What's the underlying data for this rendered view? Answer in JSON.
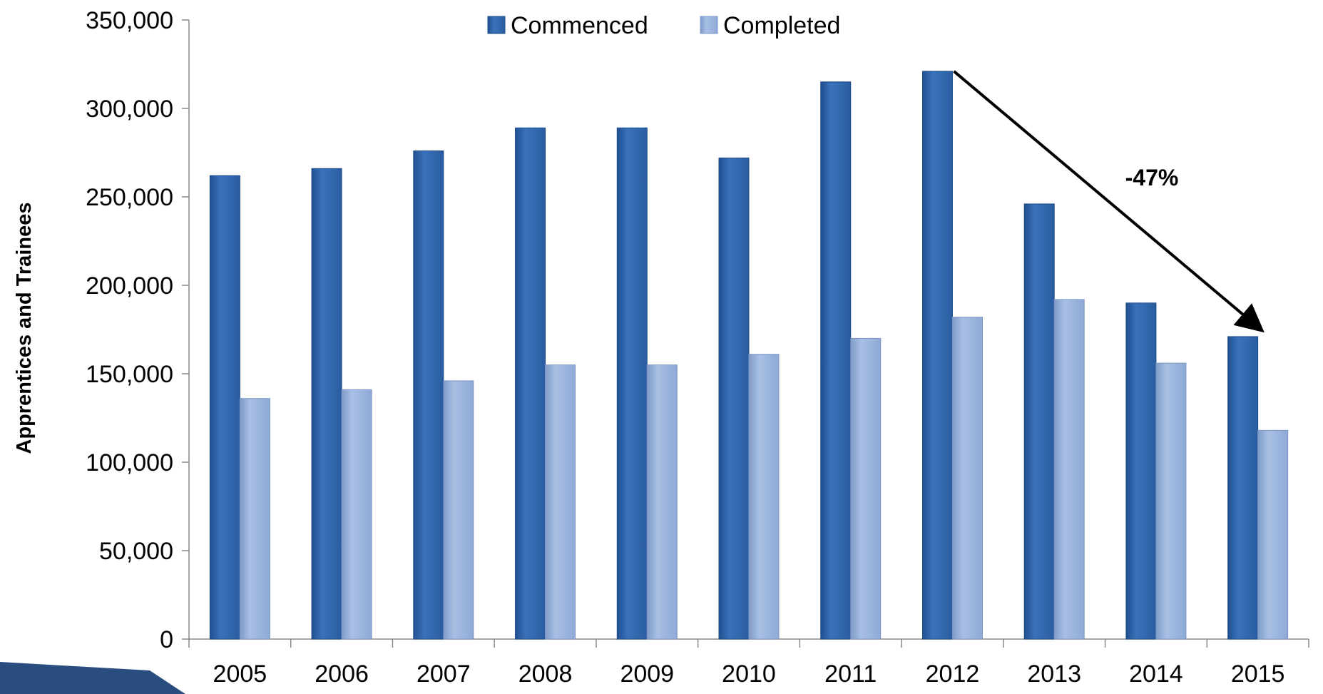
{
  "chart_data": {
    "type": "bar",
    "title": "",
    "xlabel": "",
    "ylabel": "Apprentices and Trainees",
    "ylim": [
      0,
      350000
    ],
    "yticks": [
      0,
      50000,
      100000,
      150000,
      200000,
      250000,
      300000,
      350000
    ],
    "ytick_labels": [
      "0",
      "50,000",
      "100,000",
      "150,000",
      "200,000",
      "250,000",
      "300,000",
      "350,000"
    ],
    "categories": [
      "2005",
      "2006",
      "2007",
      "2008",
      "2009",
      "2010",
      "2011",
      "2012",
      "2013",
      "2014",
      "2015"
    ],
    "series": [
      {
        "name": "Commenced",
        "color": "#2f66ad",
        "values": [
          262000,
          266000,
          276000,
          289000,
          289000,
          272000,
          315000,
          321000,
          246000,
          190000,
          171000
        ]
      },
      {
        "name": "Completed",
        "color": "#98b2dc",
        "values": [
          136000,
          141000,
          146000,
          155000,
          155000,
          161000,
          170000,
          182000,
          192000,
          156000,
          118000
        ]
      }
    ],
    "legend": "top-center",
    "grid": false,
    "annotation": {
      "text": "-47%",
      "from_category": "2012",
      "to_category": "2015",
      "series": "Commenced"
    }
  }
}
